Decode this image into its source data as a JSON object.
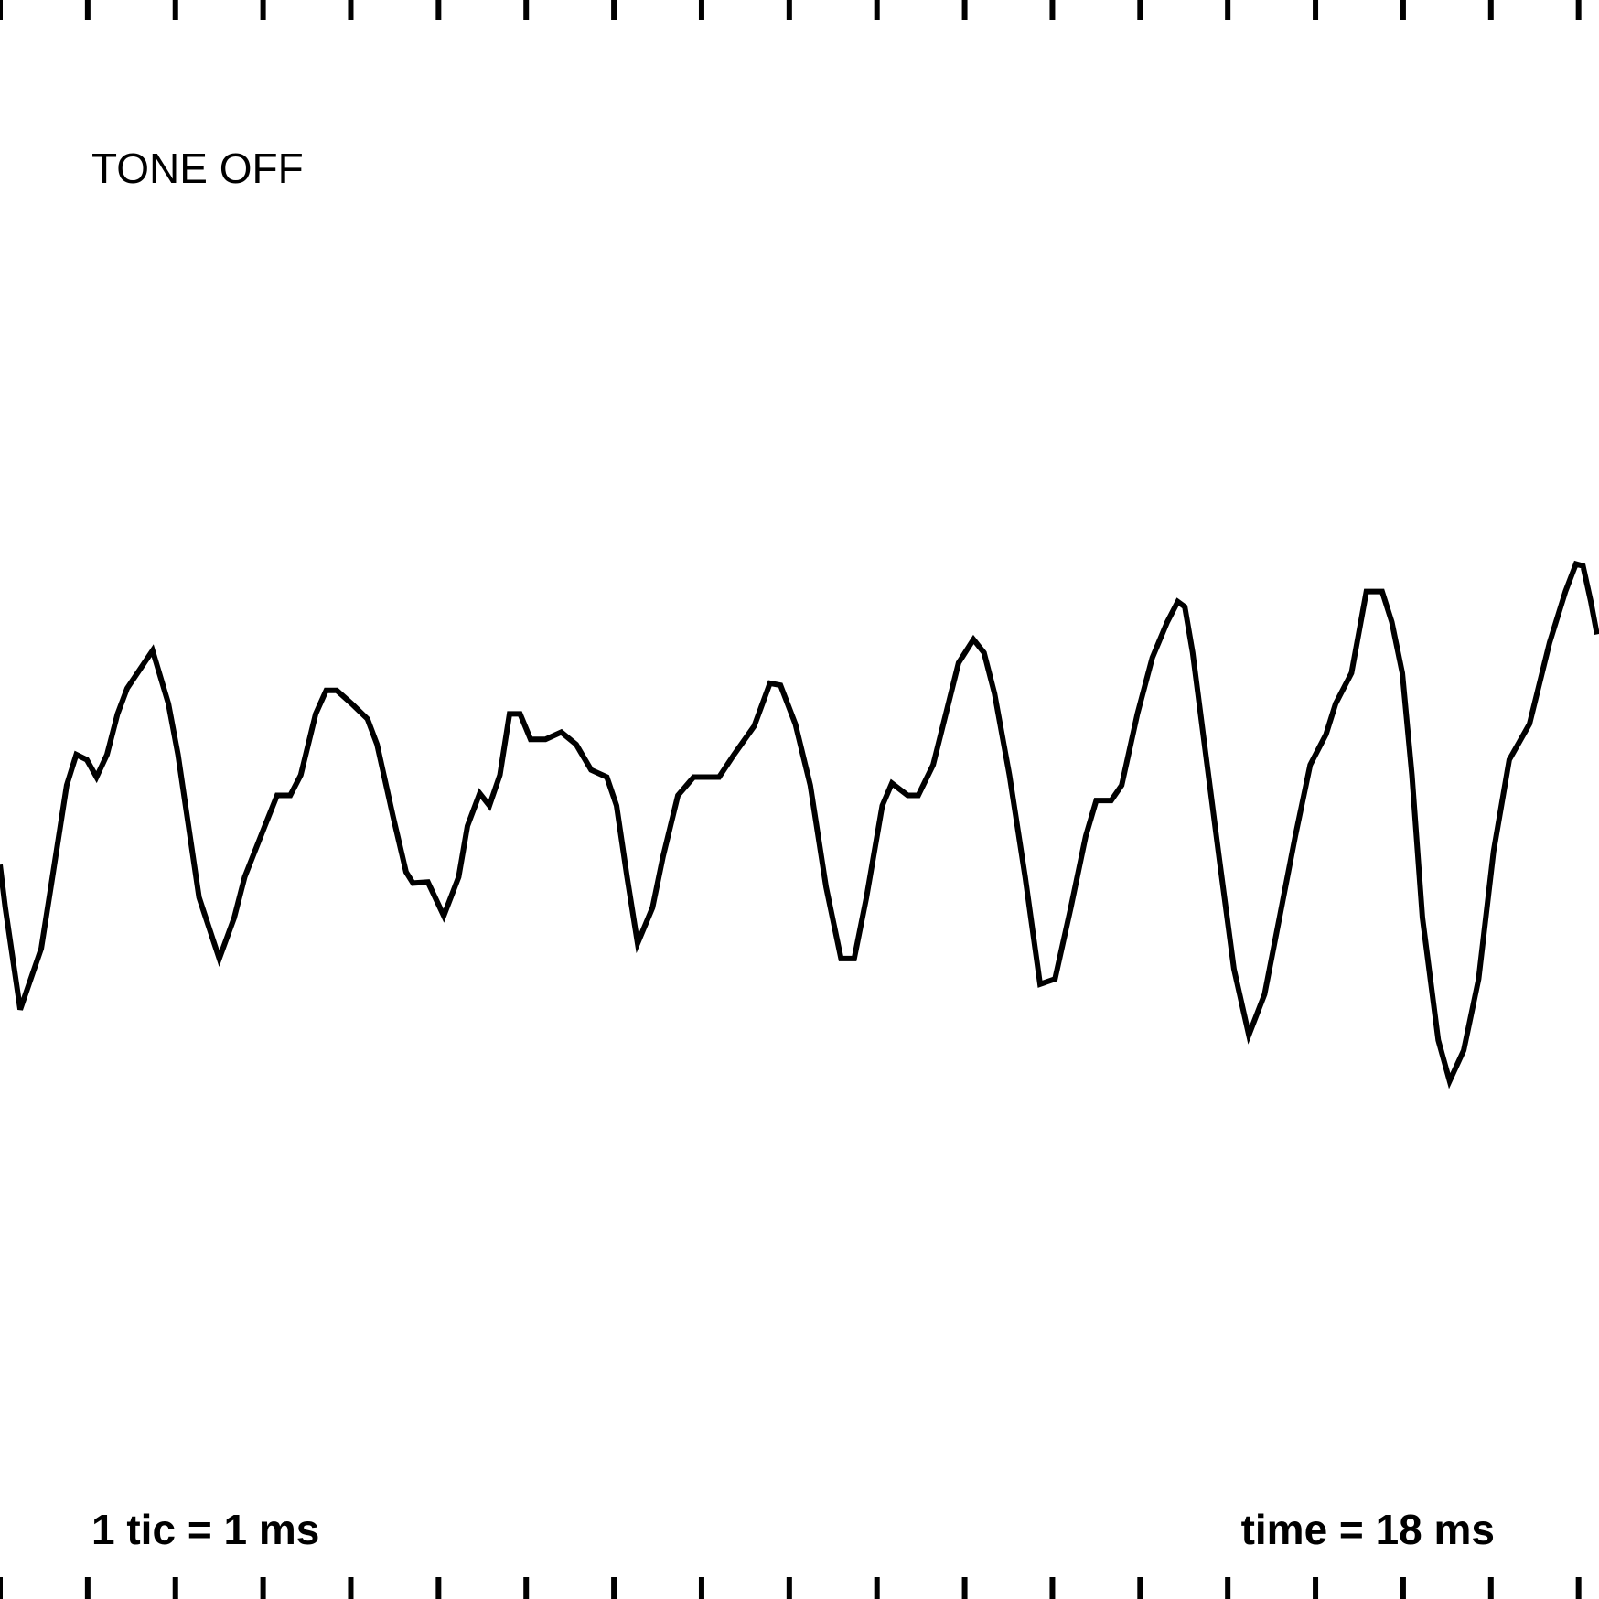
{
  "chart_data": {
    "type": "line",
    "title": "TONE OFF",
    "scale_note": "1 tic = 1 ms",
    "time_label": "time = 18 ms",
    "xlim": [
      0,
      18.233
    ],
    "ylim": [
      -784,
      784
    ],
    "xticks": [
      0,
      1,
      2,
      3,
      4,
      5,
      6,
      7,
      8,
      9,
      10,
      11,
      12,
      13,
      14,
      15,
      16,
      17,
      18
    ],
    "color": "#000000",
    "series": [
      {
        "color": "#000000",
        "x": [
          0,
          0.06,
          0.23,
          0.47,
          0.58,
          0.76,
          0.87,
          0.99,
          1.1,
          1.22,
          1.34,
          1.45,
          1.74,
          1.92,
          2.03,
          2.15,
          2.27,
          2.5,
          2.67,
          2.79,
          3.02,
          3.16,
          3.31,
          3.43,
          3.6,
          3.72,
          3.84,
          4.01,
          4.19,
          4.3,
          4.48,
          4.63,
          4.71,
          4.88,
          5.06,
          5.23,
          5.33,
          5.47,
          5.58,
          5.7,
          5.81,
          5.93,
          6.05,
          6.22,
          6.4,
          6.57,
          6.74,
          6.92,
          7.03,
          7.15,
          7.27,
          7.44,
          7.56,
          7.73,
          7.91,
          8.2,
          8.37,
          8.6,
          8.78,
          8.9,
          9.07,
          9.24,
          9.42,
          9.59,
          9.74,
          9.88,
          10.06,
          10.17,
          10.35,
          10.47,
          10.64,
          10.93,
          11.1,
          11.22,
          11.34,
          11.51,
          11.69,
          11.86,
          12.03,
          12.21,
          12.38,
          12.5,
          12.67,
          12.79,
          12.97,
          13.14,
          13.31,
          13.43,
          13.51,
          13.6,
          13.72,
          13.9,
          14.07,
          14.24,
          14.42,
          14.59,
          14.77,
          14.94,
          15.12,
          15.23,
          15.41,
          15.58,
          15.76,
          15.87,
          15.99,
          16.1,
          16.22,
          16.4,
          16.53,
          16.69,
          16.86,
          17.03,
          17.21,
          17.44,
          17.67,
          17.85,
          17.97,
          18.05,
          18.14,
          18.21
        ],
        "values": [
          -64,
          -106,
          -206,
          -146,
          -86,
          14,
          44,
          39,
          22,
          44,
          84,
          109,
          146,
          94,
          44,
          -26,
          -96,
          -156,
          -116,
          -76,
          -26,
          4,
          4,
          24,
          84,
          107,
          107,
          94,
          79,
          54,
          -16,
          -71,
          -82,
          -81,
          -114,
          -76,
          -26,
          6,
          -6,
          24,
          84,
          84,
          59,
          59,
          66,
          54,
          29,
          22,
          -6,
          -76,
          -141,
          -106,
          -56,
          4,
          22,
          22,
          44,
          72,
          114,
          112,
          74,
          14,
          -86,
          -156,
          -156,
          -96,
          -6,
          16,
          4,
          4,
          34,
          134,
          157,
          144,
          104,
          24,
          -76,
          -181,
          -176,
          -106,
          -36,
          -1,
          -1,
          14,
          84,
          139,
          174,
          194,
          189,
          144,
          64,
          -56,
          -166,
          -231,
          -191,
          -116,
          -36,
          34,
          64,
          94,
          124,
          204,
          204,
          174,
          124,
          24,
          -116,
          -236,
          -276,
          -246,
          -176,
          -51,
          39,
          74,
          154,
          204,
          231,
          229,
          194,
          162
        ]
      }
    ]
  }
}
